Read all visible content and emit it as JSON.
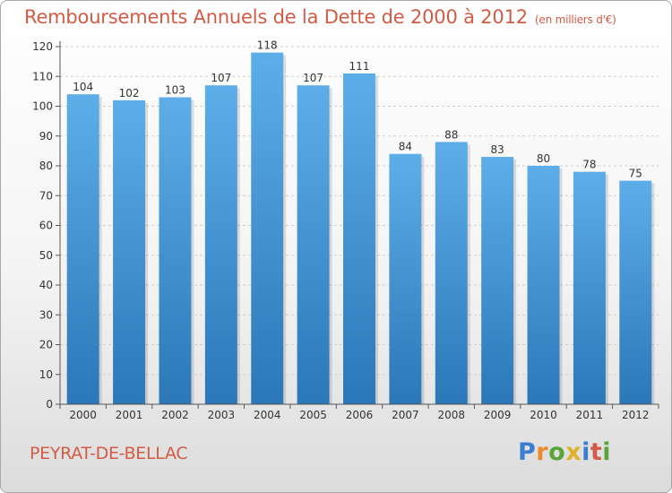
{
  "header": {
    "title": "Remboursements Annuels de la Dette de 2000 à 2012",
    "unit": "(en milliers d'€)"
  },
  "footer": {
    "city": "PEYRAT-DE-BELLAC",
    "logo": "Proxiti",
    "logo_colors": [
      "#3b7ed0",
      "#e98a2c",
      "#5aa53a",
      "#e0b12a",
      "#3b7ed0",
      "#d35b45",
      "#5aa53a"
    ]
  },
  "colors": {
    "title": "#d35b45",
    "bar_top": "#5daee8",
    "bar_bottom": "#2b77b8",
    "grid": "#cfcfcf",
    "axis": "#555555"
  },
  "chart_data": {
    "type": "bar",
    "title": "Remboursements Annuels de la Dette de 2000 à 2012",
    "categories": [
      "2000",
      "2001",
      "2002",
      "2003",
      "2004",
      "2005",
      "2006",
      "2007",
      "2008",
      "2009",
      "2010",
      "2011",
      "2012"
    ],
    "values": [
      104,
      102,
      103,
      107,
      118,
      107,
      111,
      84,
      88,
      83,
      80,
      78,
      75
    ],
    "ylim": [
      0,
      120
    ],
    "yticks": [
      0,
      10,
      20,
      30,
      40,
      50,
      60,
      70,
      80,
      90,
      100,
      110,
      120
    ],
    "grid": true,
    "data_labels": true
  }
}
